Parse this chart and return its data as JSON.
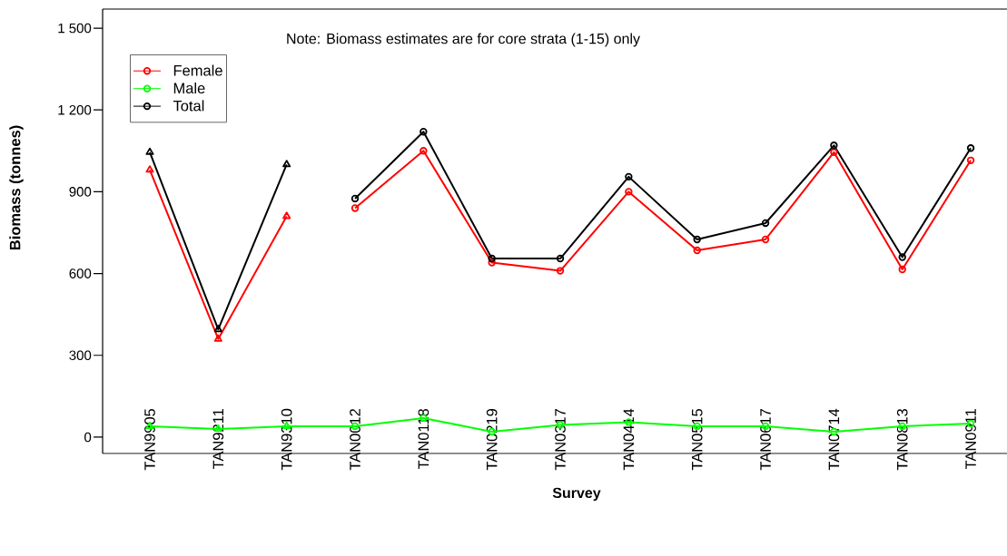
{
  "chart_data": {
    "type": "line",
    "xlabel": "Survey",
    "ylabel": "Biomass (tonnes)",
    "annotations": [
      "Note: Biomass estimates are for core strata (1-15) only"
    ],
    "categories": [
      "TAN9905",
      "TAN9211",
      "TAN9310",
      "TAN0012",
      "TAN0118",
      "TAN0219",
      "TAN0317",
      "TAN0414",
      "TAN0515",
      "TAN0617",
      "TAN0714",
      "TAN0813",
      "TAN0911"
    ],
    "ylim": [
      -60,
      1570
    ],
    "yticks": [
      0,
      300,
      600,
      900,
      {
        "value": 1200,
        "label": "1 200"
      },
      {
        "value": 1500,
        "label": "1 500"
      }
    ],
    "legend": "top left",
    "line_style": "solid",
    "series": [
      {
        "name": "Female",
        "color": "#ff0000",
        "marker": "circle",
        "values": [
          null,
          null,
          null,
          840,
          1050,
          640,
          610,
          900,
          685,
          725,
          1045,
          615,
          1015
        ]
      },
      {
        "color": "#ff0000",
        "marker": "triangle",
        "values": [
          980,
          360,
          810,
          null,
          null,
          null,
          null,
          null,
          null,
          null,
          null,
          null,
          null
        ]
      },
      {
        "name": "Male",
        "color": "#00ff00",
        "marker": "circle",
        "values": [
          null,
          null,
          null,
          40,
          70,
          20,
          45,
          55,
          40,
          40,
          20,
          40,
          50
        ]
      },
      {
        "color": "#00ff00",
        "marker": "triangle",
        "values": [
          40,
          30,
          40,
          null,
          null,
          null,
          null,
          null,
          null,
          null,
          null,
          null,
          null
        ]
      },
      {
        "color": "#00ff00",
        "marker": "none",
        "values": [
          null,
          null,
          40,
          40,
          null,
          null,
          null,
          null,
          null,
          null,
          null,
          null,
          null
        ]
      },
      {
        "name": "Total",
        "color": "#000000",
        "marker": "circle",
        "values": [
          null,
          null,
          null,
          875,
          1120,
          655,
          655,
          955,
          725,
          785,
          1070,
          660,
          1060
        ]
      },
      {
        "color": "#000000",
        "marker": "triangle",
        "values": [
          1045,
          395,
          1000,
          null,
          null,
          null,
          null,
          null,
          null,
          null,
          null,
          null,
          null
        ]
      }
    ]
  }
}
